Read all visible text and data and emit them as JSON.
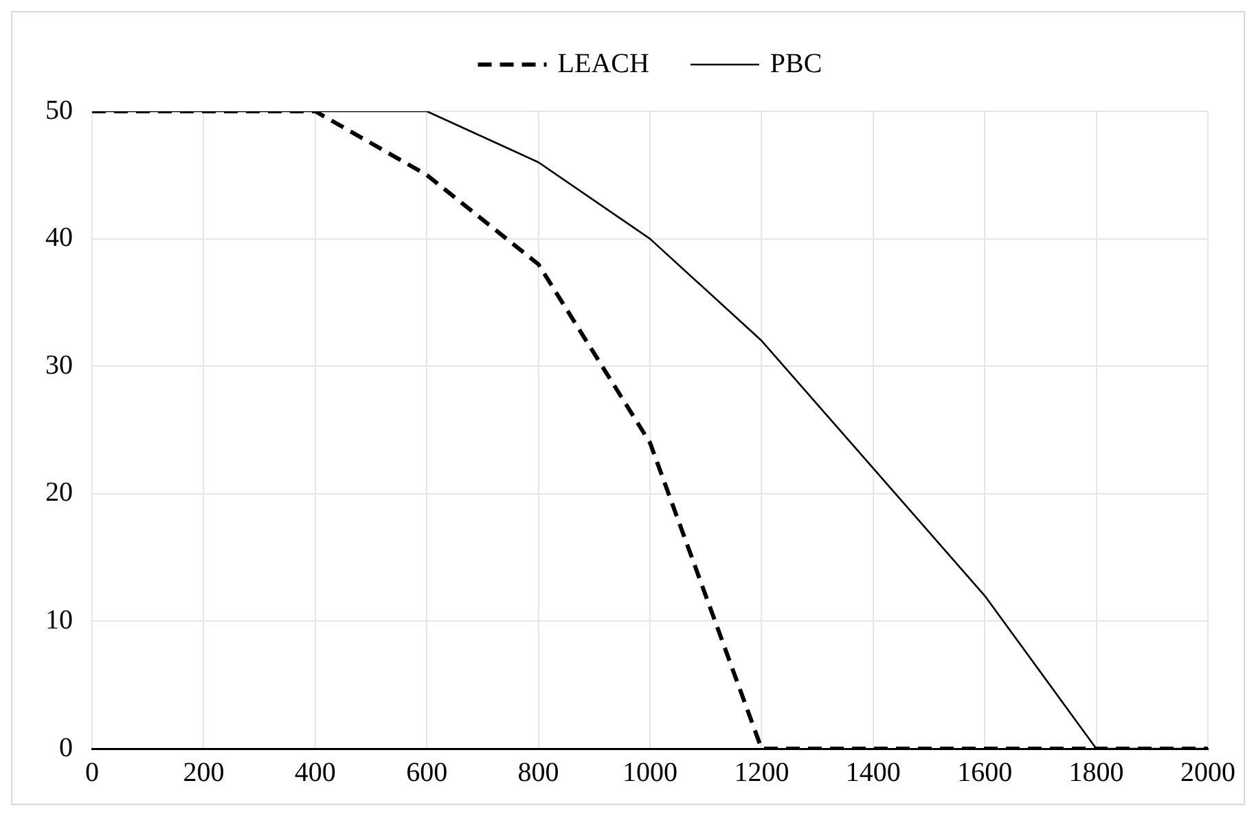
{
  "chart_data": {
    "type": "line",
    "x": [
      0,
      200,
      400,
      600,
      800,
      1000,
      1200,
      1400,
      1600,
      1800,
      2000
    ],
    "series": [
      {
        "name": "LEACH",
        "color": "#000000",
        "line_style": "dashed",
        "values": [
          50,
          50,
          50,
          45,
          38,
          24,
          0,
          0,
          0,
          0,
          0
        ]
      },
      {
        "name": "PBC",
        "color": "#000000",
        "line_style": "solid",
        "values": [
          50,
          50,
          50,
          50,
          46,
          40,
          32,
          22,
          12,
          0,
          0
        ]
      }
    ],
    "xlim": [
      0,
      2000
    ],
    "xticks": [
      0,
      200,
      400,
      600,
      800,
      1000,
      1200,
      1400,
      1600,
      1800,
      2000
    ],
    "ylim": [
      0,
      50
    ],
    "yticks": [
      0,
      10,
      20,
      30,
      40,
      50
    ],
    "grid": true,
    "legend": "top",
    "marker": "none"
  }
}
